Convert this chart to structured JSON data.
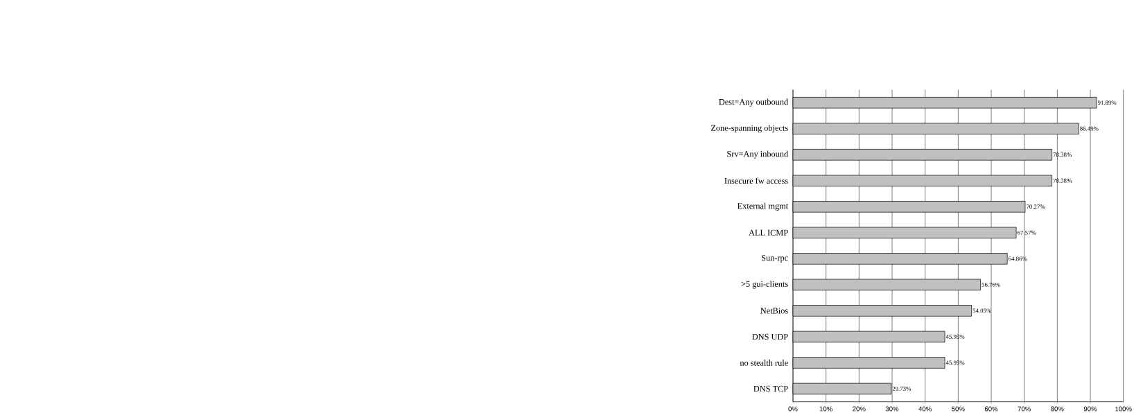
{
  "chart_data": {
    "type": "bar",
    "orientation": "horizontal",
    "categories": [
      "Dest=Any outbound",
      "Zone-spanning objects",
      "Srv=Any inbound",
      "Insecure fw access",
      "External mgmt",
      "ALL ICMP",
      "Sun-rpc",
      ">5 gui-clients",
      "NetBios",
      "DNS UDP",
      "no stealth rule",
      "DNS TCP"
    ],
    "values": [
      91.89,
      86.49,
      78.38,
      78.38,
      70.27,
      67.57,
      64.86,
      56.76,
      54.05,
      45.95,
      45.95,
      29.73
    ],
    "value_labels": [
      "91.89%",
      "86.49%",
      "78.38%",
      "78.38%",
      "70.27%",
      "67.57%",
      "64.86%",
      "56.76%",
      "54.05%",
      "45.95%",
      "45.95%",
      "29.73%"
    ],
    "color": "#c0c0c0",
    "xlim": [
      0,
      100
    ],
    "xticks": [
      {
        "value": 0,
        "label": "0%"
      },
      {
        "value": 10,
        "label": "10%"
      },
      {
        "value": 20,
        "label": "20%"
      },
      {
        "value": 30,
        "label": "30%"
      },
      {
        "value": 40,
        "label": "40%"
      },
      {
        "value": 50,
        "label": "50%"
      },
      {
        "value": 60,
        "label": "60%"
      },
      {
        "value": 70,
        "label": "70%"
      },
      {
        "value": 80,
        "label": "80%"
      },
      {
        "value": 90,
        "label": "90%"
      },
      {
        "value": 100,
        "label": "100%"
      }
    ],
    "grid": "x"
  }
}
